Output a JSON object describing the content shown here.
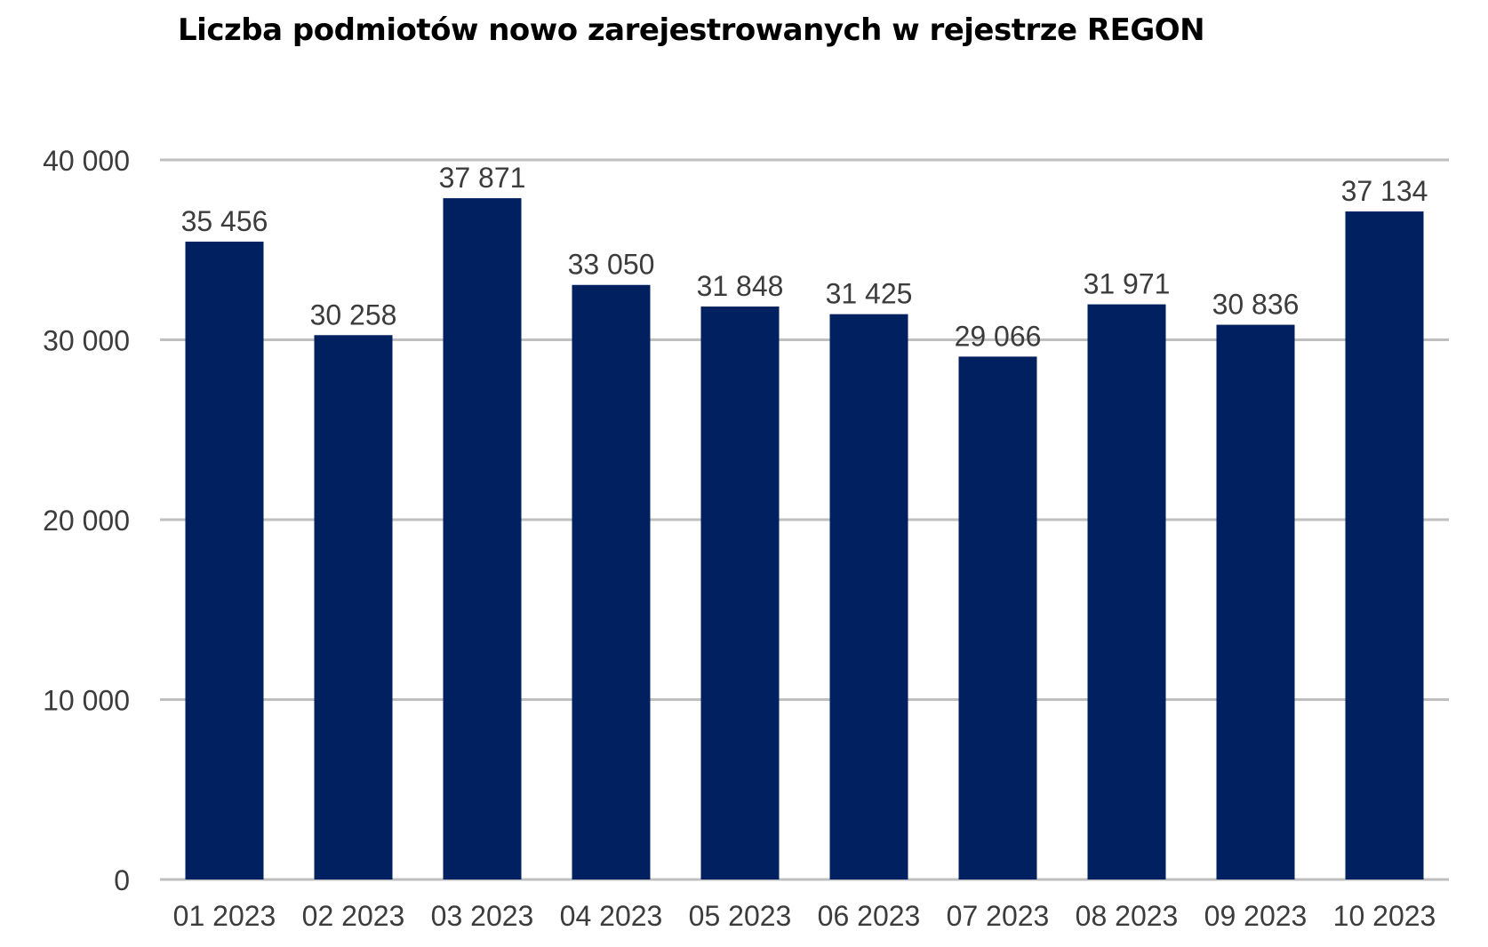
{
  "chart_data": {
    "type": "bar",
    "title": "Liczba podmiotów nowo zarejestrowanych w rejestrze REGON",
    "xlabel": "",
    "ylabel": "",
    "categories": [
      "01 2023",
      "02 2023",
      "03 2023",
      "04 2023",
      "05 2023",
      "06 2023",
      "07 2023",
      "08 2023",
      "09 2023",
      "10 2023"
    ],
    "values": [
      35456,
      30258,
      37871,
      33050,
      31848,
      31425,
      29066,
      31971,
      30836,
      37134
    ],
    "value_labels": [
      "35 456",
      "30 258",
      "37 871",
      "33 050",
      "31 848",
      "31 425",
      "29 066",
      "31 971",
      "30 836",
      "37 134"
    ],
    "ylim": [
      0,
      40000
    ],
    "yticks": [
      0,
      10000,
      20000,
      30000,
      40000
    ],
    "ytick_labels": [
      "0",
      "10 000",
      "20 000",
      "30 000",
      "40 000"
    ],
    "grid": true,
    "legend": "none",
    "colors": {
      "bar": "#002060",
      "grid": "#bfbfbf",
      "text": "#3c3c3c"
    }
  }
}
